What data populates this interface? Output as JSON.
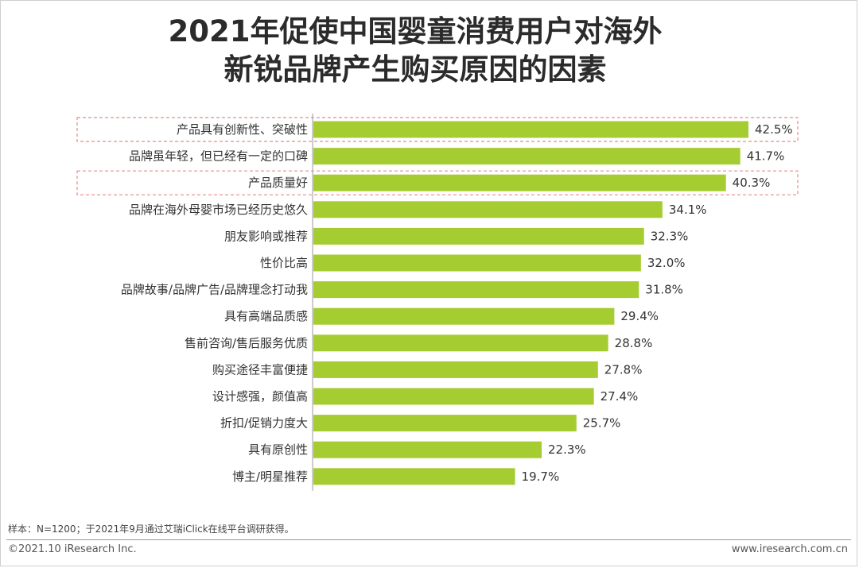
{
  "title": {
    "line1": "2021年促使中国婴童消费用户对海外",
    "line2": "新锐品牌产生购买原因的因素"
  },
  "colors": {
    "bar": "#a5cd32",
    "highlight_border": "#e88a8a",
    "axis": "#999999"
  },
  "chart_data": {
    "type": "bar",
    "orientation": "horizontal",
    "title": "2021年促使中国婴童消费用户对海外新锐品牌产生购买原因的因素",
    "unit": "%",
    "xlim": [
      0,
      42.5
    ],
    "categories": [
      "产品具有创新性、突破性",
      "品牌虽年轻，但已经有一定的口碑",
      "产品质量好",
      "品牌在海外母婴市场已经历史悠久",
      "朋友影响或推荐",
      "性价比高",
      "品牌故事/品牌广告/品牌理念打动我",
      "具有高端品质感",
      "售前咨询/售后服务优质",
      "购买途径丰富便捷",
      "设计感强，颜值高",
      "折扣/促销力度大",
      "具有原创性",
      "博主/明星推荐"
    ],
    "values": [
      42.5,
      41.7,
      40.3,
      34.1,
      32.3,
      32.0,
      31.8,
      29.4,
      28.8,
      27.8,
      27.4,
      25.7,
      22.3,
      19.7
    ],
    "value_labels": [
      "42.5%",
      "41.7%",
      "40.3%",
      "34.1%",
      "32.3%",
      "32.0%",
      "31.8%",
      "29.4%",
      "28.8%",
      "27.8%",
      "27.4%",
      "25.7%",
      "22.3%",
      "19.7%"
    ],
    "highlighted": [
      0,
      2
    ]
  },
  "footnote": "样本：N=1200；于2021年9月通过艾瑞iClick在线平台调研获得。",
  "footer": {
    "copyright": "©2021.10 iResearch Inc.",
    "website": "www.iresearch.com.cn"
  }
}
